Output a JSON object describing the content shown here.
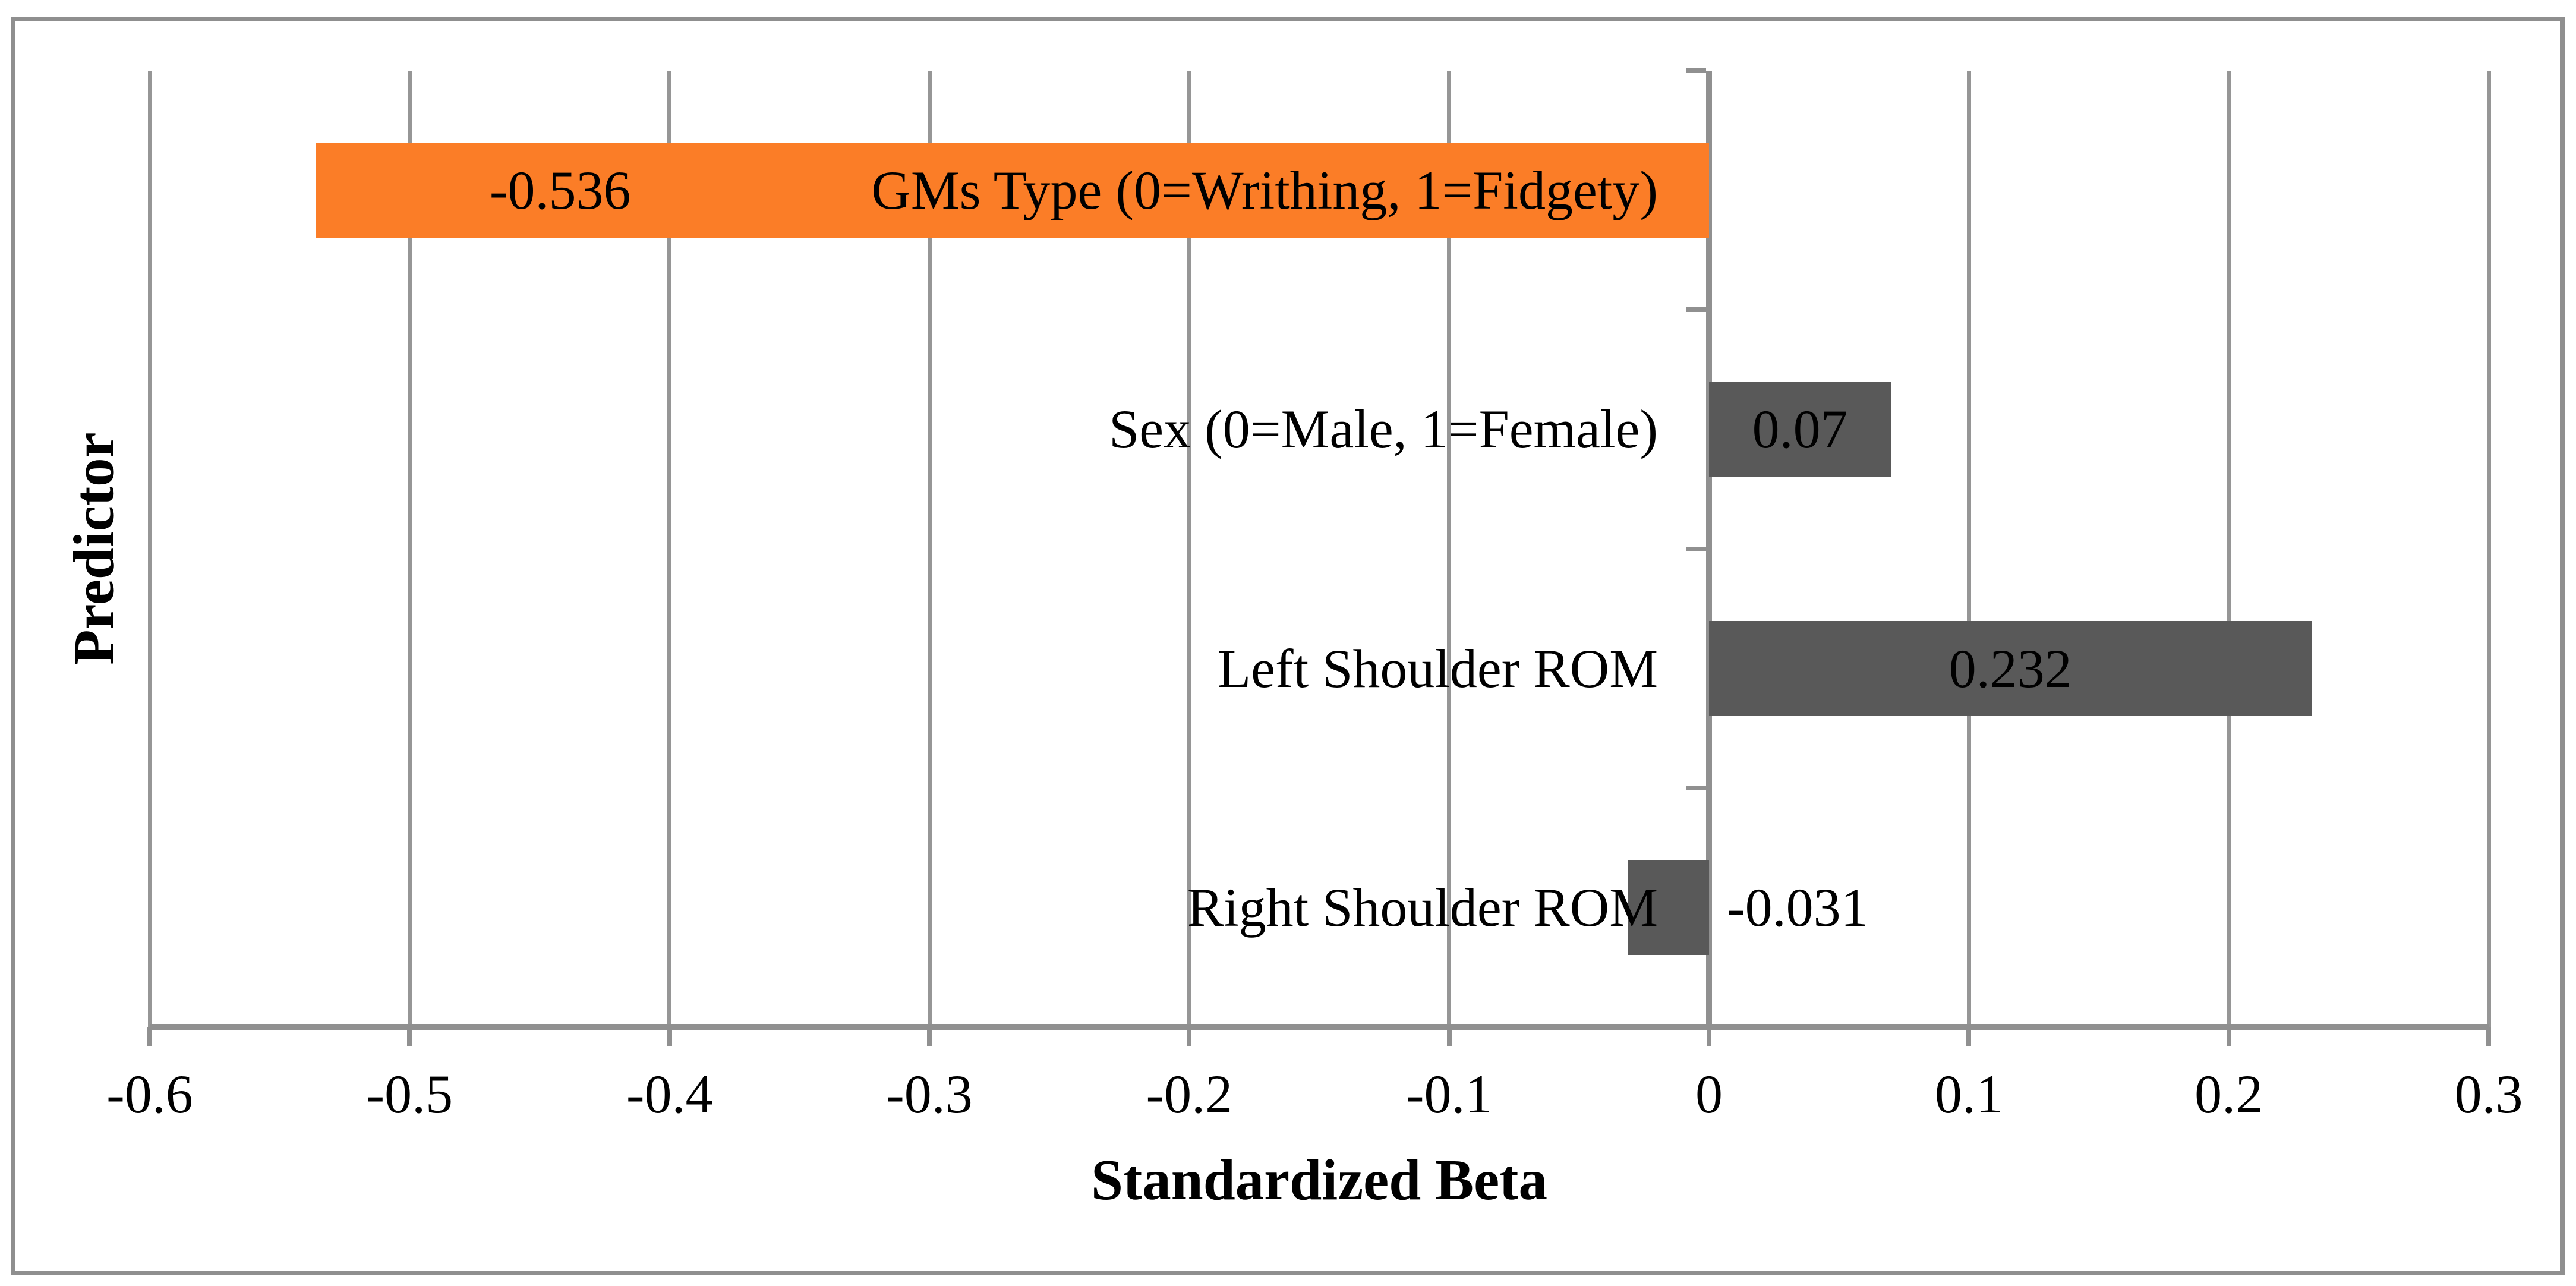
{
  "figure": {
    "background": "#FFFFFF",
    "border_color": "#8F8F8F"
  },
  "chart_data": {
    "type": "bar",
    "orientation": "horizontal",
    "title": "",
    "xlabel": "Standardized Beta",
    "ylabel": "Predictor",
    "categories": [
      "GMs Type (0=Writhing, 1=Fidgety)",
      "Sex (0=Male, 1=Female)",
      "Left Shoulder ROM",
      "Right Shoulder ROM"
    ],
    "values": [
      -0.536,
      0.07,
      0.232,
      -0.031
    ],
    "value_labels": [
      "-0.536",
      "0.07",
      "0.232",
      "-0.031"
    ],
    "bar_colors": [
      "#FB7D27",
      "#595959",
      "#595959",
      "#595959"
    ],
    "value_label_placements": [
      "inside-end",
      "center",
      "center",
      "outside-base"
    ],
    "xlim": [
      -0.6,
      0.3
    ],
    "xtick_values": [
      -0.6,
      -0.5,
      -0.4,
      -0.3,
      -0.2,
      -0.1,
      0,
      0.1,
      0.2,
      0.3
    ],
    "xtick_labels": [
      "-0.6",
      "-0.5",
      "-0.4",
      "-0.3",
      "-0.2",
      "-0.1",
      "0",
      "0.1",
      "0.2",
      "0.3"
    ],
    "grid": true,
    "legend": false,
    "gridline_color": "#969696",
    "axis_color": "#909090",
    "text_color": "#000000"
  }
}
